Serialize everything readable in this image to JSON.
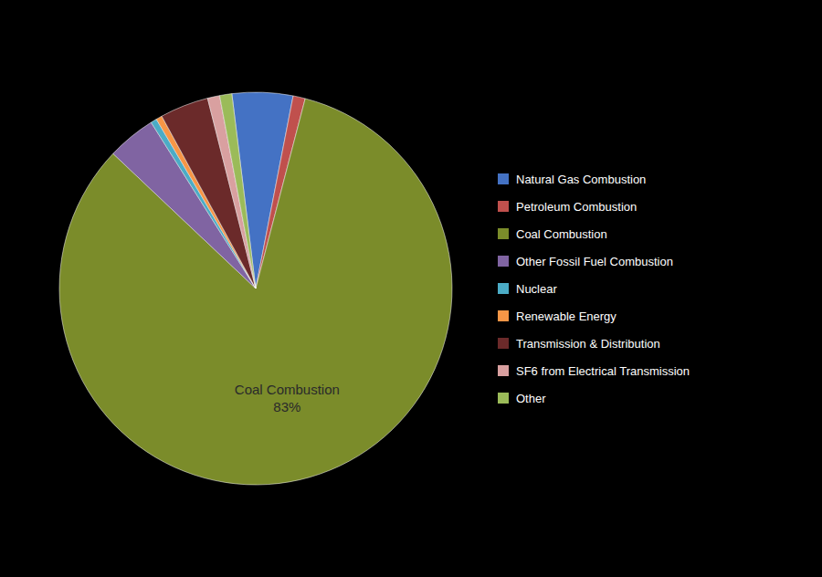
{
  "chart_data": {
    "type": "pie",
    "categories": [
      "Natural Gas Combustion",
      "Petroleum Combustion",
      "Coal Combustion",
      "Other Fossil Fuel Combustion",
      "Nuclear",
      "Renewable Energy",
      "Transmission & Distribution",
      "SF6 from Electrical Transmission",
      "Other"
    ],
    "values": [
      5.0,
      1.0,
      83.0,
      4.0,
      0.5,
      0.5,
      4.0,
      1.0,
      1.0
    ],
    "colors": [
      "#4472C4",
      "#C0504D",
      "#7B8C2A",
      "#8064A2",
      "#4BACC6",
      "#F79646",
      "#6B2A2A",
      "#D9A0A0",
      "#9BBB59"
    ],
    "value_labels": [
      null,
      null,
      "83%",
      null,
      null,
      null,
      null,
      null,
      null
    ],
    "legend": "right"
  }
}
